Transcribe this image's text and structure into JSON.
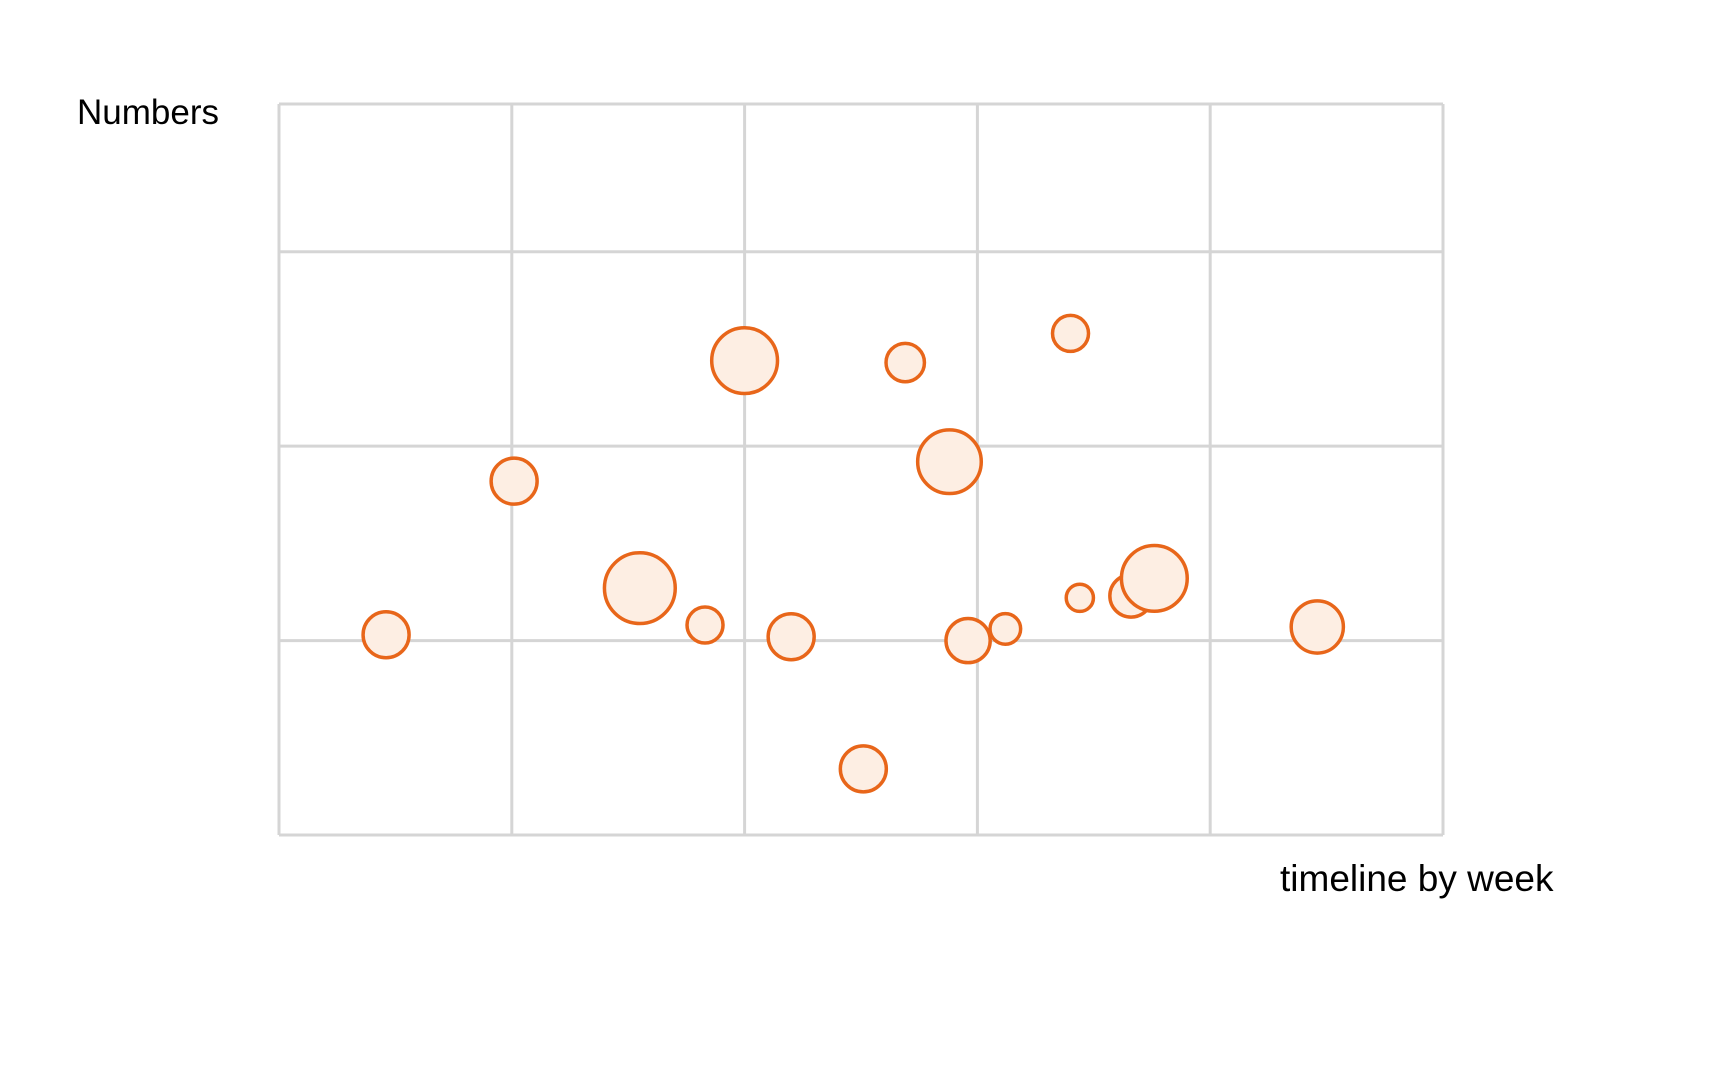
{
  "chart_data": {
    "type": "scatter",
    "title": "",
    "xlabel": "timeline by week",
    "ylabel": "Numbers",
    "xlim": [
      0,
      5
    ],
    "ylim": [
      0,
      3.76
    ],
    "grid": true,
    "x_gridlines": [
      0,
      1,
      2,
      3,
      4,
      5
    ],
    "y_gridlines": [
      0,
      1,
      2,
      3,
      3.76
    ],
    "marker_color": "#E8661A",
    "marker_fill": "#FDEEE3",
    "grid_color": "#D5D5D5",
    "points": [
      {
        "x": 0.46,
        "y": 1.03,
        "size": 1
      },
      {
        "x": 1.01,
        "y": 1.82,
        "size": 1
      },
      {
        "x": 1.55,
        "y": 1.27,
        "size": 3
      },
      {
        "x": 1.83,
        "y": 1.08,
        "size": 0.5
      },
      {
        "x": 2.0,
        "y": 2.44,
        "size": 2.5
      },
      {
        "x": 2.2,
        "y": 1.02,
        "size": 1
      },
      {
        "x": 2.51,
        "y": 0.34,
        "size": 1
      },
      {
        "x": 2.69,
        "y": 2.43,
        "size": 0.6
      },
      {
        "x": 2.88,
        "y": 1.92,
        "size": 2.3
      },
      {
        "x": 2.96,
        "y": 1.0,
        "size": 0.9
      },
      {
        "x": 3.12,
        "y": 1.06,
        "size": 0.3
      },
      {
        "x": 3.4,
        "y": 2.58,
        "size": 0.5
      },
      {
        "x": 3.44,
        "y": 1.22,
        "size": 0.2
      },
      {
        "x": 3.66,
        "y": 1.23,
        "size": 0.8
      },
      {
        "x": 3.76,
        "y": 1.32,
        "size": 2.5
      },
      {
        "x": 4.46,
        "y": 1.07,
        "size": 1.4
      }
    ]
  }
}
